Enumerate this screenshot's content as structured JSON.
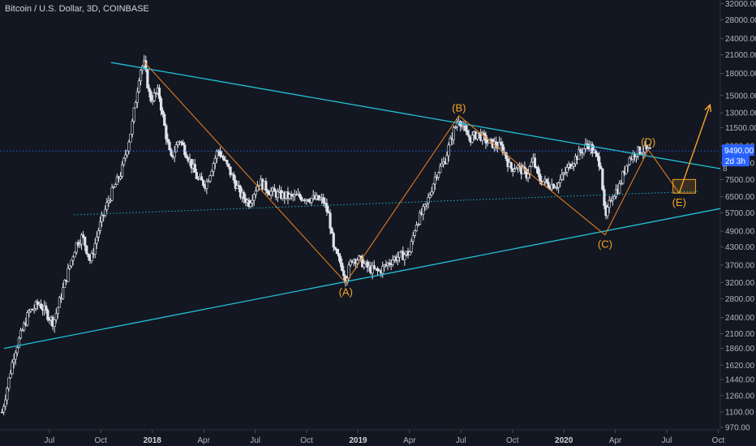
{
  "title": "Bitcoin / U.S. Dollar, 3D, COINBASE",
  "colors": {
    "background": "#131722",
    "candle": "#e0e3eb",
    "trendline": "#22c1d6",
    "wave": "#e07b1f",
    "label": "#f5a623",
    "price_tag": "#2962ff",
    "zone": "#f5a623"
  },
  "chart_data": {
    "type": "candlestick",
    "y_scale": "log",
    "ylim": [
      950,
      33000
    ],
    "y_ticks": [
      "970.00",
      "1100.00",
      "1260.00",
      "1440.00",
      "1620.00",
      "1860.00",
      "2100.00",
      "2400.00",
      "2800.00",
      "3200.00",
      "3700.00",
      "4300.00",
      "4900.00",
      "5700.00",
      "6500.00",
      "7500.00",
      "8600.00",
      "9900.00",
      "11500.00",
      "13000.00",
      "15000.00",
      "18000.00",
      "21000.00",
      "24000.00",
      "28000.00",
      "32000.00"
    ],
    "x_ticks": [
      {
        "label": "Jul",
        "t": 2017.5,
        "bold": false
      },
      {
        "label": "Oct",
        "t": 2017.75,
        "bold": false
      },
      {
        "label": "2018",
        "t": 2018.0,
        "bold": true
      },
      {
        "label": "Apr",
        "t": 2018.25,
        "bold": false
      },
      {
        "label": "Jul",
        "t": 2018.5,
        "bold": false
      },
      {
        "label": "Oct",
        "t": 2018.75,
        "bold": false
      },
      {
        "label": "2019",
        "t": 2019.0,
        "bold": true
      },
      {
        "label": "Apr",
        "t": 2019.25,
        "bold": false
      },
      {
        "label": "Jul",
        "t": 2019.5,
        "bold": false
      },
      {
        "label": "Oct",
        "t": 2019.75,
        "bold": false
      },
      {
        "label": "2020",
        "t": 2020.0,
        "bold": true
      },
      {
        "label": "Apr",
        "t": 2020.25,
        "bold": false
      },
      {
        "label": "Jul",
        "t": 2020.5,
        "bold": false
      },
      {
        "label": "Oct",
        "t": 2020.75,
        "bold": false
      }
    ],
    "xlim": [
      2017.26,
      2020.76
    ],
    "price_anchors": [
      [
        2017.27,
        1100
      ],
      [
        2017.33,
        1800
      ],
      [
        2017.4,
        2500
      ],
      [
        2017.45,
        2700
      ],
      [
        2017.52,
        2300
      ],
      [
        2017.58,
        3300
      ],
      [
        2017.63,
        4400
      ],
      [
        2017.66,
        4700
      ],
      [
        2017.7,
        3800
      ],
      [
        2017.74,
        5000
      ],
      [
        2017.79,
        6400
      ],
      [
        2017.85,
        8000
      ],
      [
        2017.9,
        11500
      ],
      [
        2017.94,
        18500
      ],
      [
        2017.96,
        19500
      ],
      [
        2017.99,
        14500
      ],
      [
        2018.03,
        15500
      ],
      [
        2018.06,
        11500
      ],
      [
        2018.09,
        8800
      ],
      [
        2018.13,
        10500
      ],
      [
        2018.17,
        9200
      ],
      [
        2018.22,
        7500
      ],
      [
        2018.26,
        7200
      ],
      [
        2018.32,
        9600
      ],
      [
        2018.37,
        8200
      ],
      [
        2018.43,
        6600
      ],
      [
        2018.47,
        6200
      ],
      [
        2018.52,
        7400
      ],
      [
        2018.57,
        6800
      ],
      [
        2018.62,
        6600
      ],
      [
        2018.67,
        6500
      ],
      [
        2018.72,
        6500
      ],
      [
        2018.78,
        6400
      ],
      [
        2018.83,
        6300
      ],
      [
        2018.86,
        5500
      ],
      [
        2018.88,
        4200
      ],
      [
        2018.92,
        3700
      ],
      [
        2018.94,
        3300
      ],
      [
        2018.97,
        3900
      ],
      [
        2019.0,
        3900
      ],
      [
        2019.05,
        3600
      ],
      [
        2019.1,
        3500
      ],
      [
        2019.17,
        3900
      ],
      [
        2019.25,
        4100
      ],
      [
        2019.28,
        5200
      ],
      [
        2019.33,
        6000
      ],
      [
        2019.38,
        7900
      ],
      [
        2019.42,
        8700
      ],
      [
        2019.46,
        11000
      ],
      [
        2019.49,
        12500
      ],
      [
        2019.52,
        11000
      ],
      [
        2019.55,
        10500
      ],
      [
        2019.58,
        11000
      ],
      [
        2019.63,
        10200
      ],
      [
        2019.7,
        9800
      ],
      [
        2019.74,
        8200
      ],
      [
        2019.77,
        8400
      ],
      [
        2019.82,
        7800
      ],
      [
        2019.85,
        8800
      ],
      [
        2019.88,
        7500
      ],
      [
        2019.93,
        7200
      ],
      [
        2019.97,
        7200
      ],
      [
        2020.03,
        8500
      ],
      [
        2020.08,
        9400
      ],
      [
        2020.12,
        10100
      ],
      [
        2020.15,
        9200
      ],
      [
        2020.18,
        8500
      ],
      [
        2020.2,
        5300
      ],
      [
        2020.23,
        6500
      ],
      [
        2020.27,
        7100
      ],
      [
        2020.31,
        8800
      ],
      [
        2020.35,
        9400
      ],
      [
        2020.38,
        9600
      ],
      [
        2020.41,
        9500
      ],
      [
        2020.42,
        9490
      ]
    ],
    "lines": [
      {
        "name": "upper-trendline",
        "style": "solid",
        "color": "trendline",
        "points": [
          [
            2017.8,
            19700
          ],
          [
            2020.76,
            8200
          ]
        ]
      },
      {
        "name": "lower-trendline",
        "style": "solid",
        "color": "trendline",
        "points": [
          [
            2017.28,
            1860
          ],
          [
            2020.76,
            5900
          ]
        ]
      },
      {
        "name": "middle-dotted-line",
        "style": "dotted",
        "color": "trendline",
        "points": [
          [
            2017.62,
            5600
          ],
          [
            2020.65,
            6800
          ]
        ]
      },
      {
        "name": "current-price-line",
        "style": "dotted",
        "color": "price_tag",
        "points": [
          [
            2017.26,
            9490
          ],
          [
            2020.76,
            9490
          ]
        ]
      }
    ],
    "waves": [
      {
        "label": "",
        "t": 2017.96,
        "price": 19800
      },
      {
        "label": "(A)",
        "t": 2018.94,
        "price": 3200
      },
      {
        "label": "(B)",
        "t": 2019.49,
        "price": 12700
      },
      {
        "label": "(C)",
        "t": 2020.2,
        "price": 4750
      },
      {
        "label": "(D)",
        "t": 2020.41,
        "price": 9600
      },
      {
        "label": "(E)",
        "t": 2020.56,
        "price": 6700
      }
    ],
    "projection": {
      "from": [
        2020.56,
        6700
      ],
      "to": [
        2020.71,
        13900
      ]
    },
    "target_zone": {
      "t1": 2020.53,
      "t2": 2020.64,
      "p_low": 6700,
      "p_high": 7500
    },
    "price_tags": [
      {
        "value": "9490.00",
        "color": "price_tag"
      },
      {
        "value": "2d 3h",
        "color": "price_tag",
        "sub": true
      }
    ],
    "partial_tick": "8"
  }
}
